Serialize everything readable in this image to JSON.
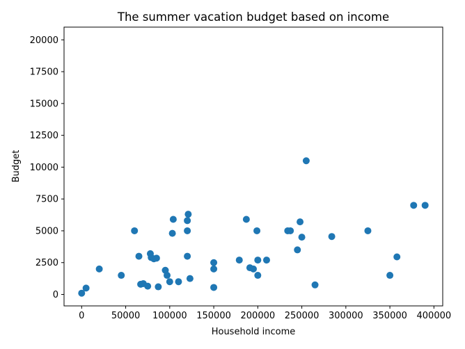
{
  "chart_data": {
    "type": "scatter",
    "title": "The summer vacation budget based on income",
    "xlabel": "Household income",
    "ylabel": "Budget",
    "xlim": [
      -20000,
      410000
    ],
    "ylim": [
      -900,
      21000
    ],
    "xticks": [
      0,
      50000,
      100000,
      150000,
      200000,
      250000,
      300000,
      350000,
      400000
    ],
    "yticks": [
      0,
      2500,
      5000,
      7500,
      10000,
      12500,
      15000,
      17500,
      20000
    ],
    "grid": false,
    "marker_color": "#1f77b4",
    "points": [
      {
        "x": 0,
        "y": 100
      },
      {
        "x": 5000,
        "y": 500
      },
      {
        "x": 20000,
        "y": 2000
      },
      {
        "x": 45000,
        "y": 1500
      },
      {
        "x": 60000,
        "y": 5000
      },
      {
        "x": 65000,
        "y": 3000
      },
      {
        "x": 67000,
        "y": 800
      },
      {
        "x": 70000,
        "y": 850
      },
      {
        "x": 75000,
        "y": 650
      },
      {
        "x": 78000,
        "y": 3200
      },
      {
        "x": 79000,
        "y": 2900
      },
      {
        "x": 82000,
        "y": 2800
      },
      {
        "x": 85000,
        "y": 2850
      },
      {
        "x": 87000,
        "y": 600
      },
      {
        "x": 95000,
        "y": 1900
      },
      {
        "x": 97000,
        "y": 1500
      },
      {
        "x": 100000,
        "y": 1000
      },
      {
        "x": 103000,
        "y": 4800
      },
      {
        "x": 104000,
        "y": 5900
      },
      {
        "x": 110000,
        "y": 1000
      },
      {
        "x": 120000,
        "y": 5000
      },
      {
        "x": 120000,
        "y": 5800
      },
      {
        "x": 120000,
        "y": 3000
      },
      {
        "x": 121000,
        "y": 6300
      },
      {
        "x": 123000,
        "y": 1250
      },
      {
        "x": 150000,
        "y": 2500
      },
      {
        "x": 150000,
        "y": 2000
      },
      {
        "x": 150000,
        "y": 550
      },
      {
        "x": 179000,
        "y": 2700
      },
      {
        "x": 187000,
        "y": 5900
      },
      {
        "x": 191000,
        "y": 2100
      },
      {
        "x": 195000,
        "y": 2000
      },
      {
        "x": 199000,
        "y": 5000
      },
      {
        "x": 200000,
        "y": 2700
      },
      {
        "x": 200000,
        "y": 1500
      },
      {
        "x": 210000,
        "y": 2700
      },
      {
        "x": 234000,
        "y": 5000
      },
      {
        "x": 237000,
        "y": 5000
      },
      {
        "x": 245000,
        "y": 3500
      },
      {
        "x": 248000,
        "y": 5700
      },
      {
        "x": 250000,
        "y": 4500
      },
      {
        "x": 255000,
        "y": 10500
      },
      {
        "x": 265000,
        "y": 750
      },
      {
        "x": 284000,
        "y": 4550
      },
      {
        "x": 325000,
        "y": 5000
      },
      {
        "x": 350000,
        "y": 1500
      },
      {
        "x": 358000,
        "y": 2950
      },
      {
        "x": 377000,
        "y": 7000
      },
      {
        "x": 390000,
        "y": 7000
      }
    ]
  }
}
